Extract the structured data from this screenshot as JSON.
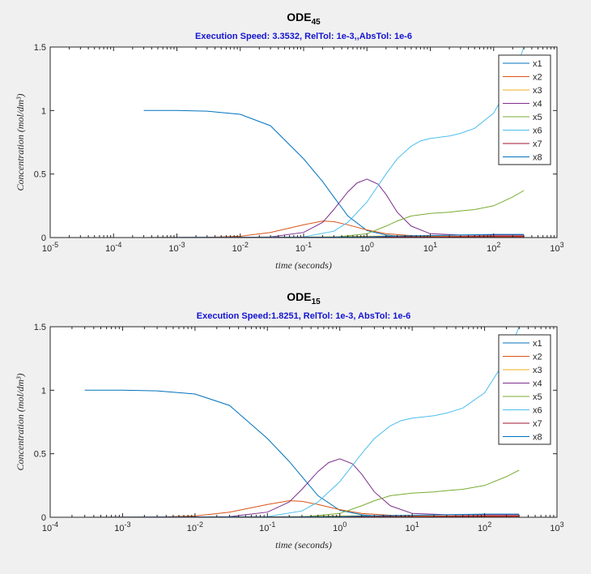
{
  "chart_data": [
    {
      "type": "line",
      "title": "ODE",
      "title_sub": "45",
      "subtitle": "Execution Speed: 3.3532, RelTol: 1e-3,,AbsTol: 1e-6",
      "xlabel": "time (seconds)",
      "ylabel": "Concentration (mol/dm³)",
      "xscale": "log",
      "xlim_exp": [
        -5,
        3
      ],
      "x_tick_labels": [
        "10^-5",
        "10^-4",
        "10^-3",
        "10^-2",
        "10^-1",
        "10^0",
        "10^1",
        "10^2",
        "10^3"
      ],
      "ylim": [
        0,
        1.5
      ],
      "y_tick_labels": [
        "0",
        "0.5",
        "1",
        "1.5"
      ],
      "legend_position": "top-right",
      "series": [
        {
          "name": "x1",
          "color": "#0072BD",
          "x": [
            0.0003,
            0.001,
            0.003,
            0.01,
            0.03,
            0.1,
            0.2,
            0.3,
            0.5,
            1,
            2,
            3,
            5,
            10,
            30,
            100,
            300
          ],
          "y": [
            1.0,
            1.0,
            0.995,
            0.97,
            0.88,
            0.62,
            0.44,
            0.32,
            0.17,
            0.055,
            0.02,
            0.012,
            0.008,
            0.005,
            0.003,
            0.002,
            0.002
          ]
        },
        {
          "name": "x2",
          "color": "#D95319",
          "x": [
            0.0003,
            0.003,
            0.01,
            0.03,
            0.1,
            0.2,
            0.3,
            0.5,
            1,
            2,
            5,
            10,
            30,
            100,
            300
          ],
          "y": [
            0,
            0.002,
            0.01,
            0.04,
            0.1,
            0.13,
            0.125,
            0.1,
            0.06,
            0.03,
            0.015,
            0.01,
            0.01,
            0.012,
            0.012
          ]
        },
        {
          "name": "x3",
          "color": "#EDB120",
          "x": [
            0.0003,
            0.01,
            0.1,
            0.3,
            1,
            2,
            5,
            10,
            30,
            100,
            300
          ],
          "y": [
            0,
            0.001,
            0.003,
            0.006,
            0.01,
            0.012,
            0.012,
            0.01,
            0.008,
            0.006,
            0.006
          ]
        },
        {
          "name": "x4",
          "color": "#7E2F8E",
          "x": [
            0.0003,
            0.01,
            0.03,
            0.1,
            0.2,
            0.3,
            0.5,
            0.7,
            1,
            1.5,
            2,
            3,
            5,
            10,
            30,
            100,
            300
          ],
          "y": [
            0,
            0.001,
            0.005,
            0.04,
            0.12,
            0.22,
            0.36,
            0.43,
            0.46,
            0.42,
            0.34,
            0.2,
            0.09,
            0.03,
            0.02,
            0.02,
            0.02
          ]
        },
        {
          "name": "x5",
          "color": "#77AC30",
          "x": [
            0.0003,
            0.1,
            0.3,
            1,
            2,
            3,
            5,
            10,
            20,
            30,
            50,
            100,
            200,
            300
          ],
          "y": [
            0,
            0,
            0.002,
            0.03,
            0.09,
            0.13,
            0.17,
            0.19,
            0.2,
            0.21,
            0.22,
            0.25,
            0.32,
            0.37
          ]
        },
        {
          "name": "x6",
          "color": "#4DBEEE",
          "x": [
            0.0003,
            0.1,
            0.3,
            0.5,
            1,
            2,
            3,
            5,
            7,
            10,
            20,
            30,
            50,
            100,
            200,
            300
          ],
          "y": [
            0,
            0.005,
            0.05,
            0.12,
            0.28,
            0.5,
            0.62,
            0.72,
            0.76,
            0.78,
            0.8,
            0.82,
            0.86,
            0.98,
            1.25,
            1.5
          ]
        },
        {
          "name": "x7",
          "color": "#A2142F",
          "x": [
            0.0003,
            0.01,
            0.1,
            1,
            10,
            100,
            300
          ],
          "y": [
            0,
            0.001,
            0.002,
            0.004,
            0.006,
            0.007,
            0.007
          ]
        },
        {
          "name": "x8",
          "color": "#0072BD",
          "x": [
            0.0003,
            0.1,
            1,
            3,
            10,
            30,
            100,
            300
          ],
          "y": [
            0,
            0.002,
            0.006,
            0.012,
            0.015,
            0.02,
            0.025,
            0.025
          ]
        }
      ]
    },
    {
      "type": "line",
      "title": "ODE",
      "title_sub": "15",
      "subtitle": "Execution Speed:1.8251, RelTol: 1e-3, AbsTol: 1e-6",
      "xlabel": "time (seconds)",
      "ylabel": "Concentration (mol/dm³)",
      "xscale": "log",
      "xlim_exp": [
        -4,
        3
      ],
      "x_tick_labels": [
        "10^-4",
        "10^-3",
        "10^-2",
        "10^-1",
        "10^0",
        "10^1",
        "10^2",
        "10^3"
      ],
      "ylim": [
        0,
        1.5
      ],
      "y_tick_labels": [
        "0",
        "0.5",
        "1",
        "1.5"
      ],
      "legend_position": "top-right",
      "series": [
        {
          "name": "x1",
          "color": "#0072BD",
          "x": [
            0.0003,
            0.001,
            0.003,
            0.01,
            0.03,
            0.1,
            0.2,
            0.3,
            0.5,
            1,
            2,
            3,
            5,
            10,
            30,
            100,
            300
          ],
          "y": [
            1.0,
            1.0,
            0.995,
            0.97,
            0.88,
            0.62,
            0.44,
            0.32,
            0.17,
            0.055,
            0.02,
            0.012,
            0.008,
            0.005,
            0.003,
            0.002,
            0.002
          ]
        },
        {
          "name": "x2",
          "color": "#D95319",
          "x": [
            0.0003,
            0.003,
            0.01,
            0.03,
            0.1,
            0.2,
            0.3,
            0.5,
            1,
            2,
            5,
            10,
            30,
            100,
            300
          ],
          "y": [
            0,
            0.002,
            0.01,
            0.04,
            0.1,
            0.13,
            0.125,
            0.1,
            0.06,
            0.03,
            0.015,
            0.01,
            0.01,
            0.012,
            0.012
          ]
        },
        {
          "name": "x3",
          "color": "#EDB120",
          "x": [
            0.0003,
            0.01,
            0.1,
            0.3,
            1,
            2,
            5,
            10,
            30,
            100,
            300
          ],
          "y": [
            0,
            0.001,
            0.003,
            0.006,
            0.01,
            0.012,
            0.012,
            0.01,
            0.008,
            0.006,
            0.006
          ]
        },
        {
          "name": "x4",
          "color": "#7E2F8E",
          "x": [
            0.0003,
            0.01,
            0.03,
            0.1,
            0.2,
            0.3,
            0.5,
            0.7,
            1,
            1.5,
            2,
            3,
            5,
            10,
            30,
            100,
            300
          ],
          "y": [
            0,
            0.001,
            0.005,
            0.04,
            0.12,
            0.22,
            0.36,
            0.43,
            0.46,
            0.42,
            0.34,
            0.2,
            0.09,
            0.03,
            0.02,
            0.02,
            0.02
          ]
        },
        {
          "name": "x5",
          "color": "#77AC30",
          "x": [
            0.0003,
            0.1,
            0.3,
            1,
            2,
            3,
            5,
            10,
            20,
            30,
            50,
            100,
            200,
            300
          ],
          "y": [
            0,
            0,
            0.002,
            0.03,
            0.09,
            0.13,
            0.17,
            0.19,
            0.2,
            0.21,
            0.22,
            0.25,
            0.32,
            0.37
          ]
        },
        {
          "name": "x6",
          "color": "#4DBEEE",
          "x": [
            0.0003,
            0.1,
            0.3,
            0.5,
            1,
            2,
            3,
            5,
            7,
            10,
            20,
            30,
            50,
            100,
            200,
            300
          ],
          "y": [
            0,
            0.005,
            0.05,
            0.12,
            0.28,
            0.5,
            0.62,
            0.72,
            0.76,
            0.78,
            0.8,
            0.82,
            0.86,
            0.98,
            1.25,
            1.5
          ]
        },
        {
          "name": "x7",
          "color": "#A2142F",
          "x": [
            0.0003,
            0.01,
            0.1,
            1,
            10,
            100,
            300
          ],
          "y": [
            0,
            0.001,
            0.002,
            0.004,
            0.006,
            0.007,
            0.007
          ]
        },
        {
          "name": "x8",
          "color": "#0072BD",
          "x": [
            0.0003,
            0.1,
            1,
            3,
            10,
            30,
            100,
            300
          ],
          "y": [
            0,
            0.002,
            0.006,
            0.012,
            0.015,
            0.02,
            0.025,
            0.025
          ]
        }
      ]
    }
  ]
}
